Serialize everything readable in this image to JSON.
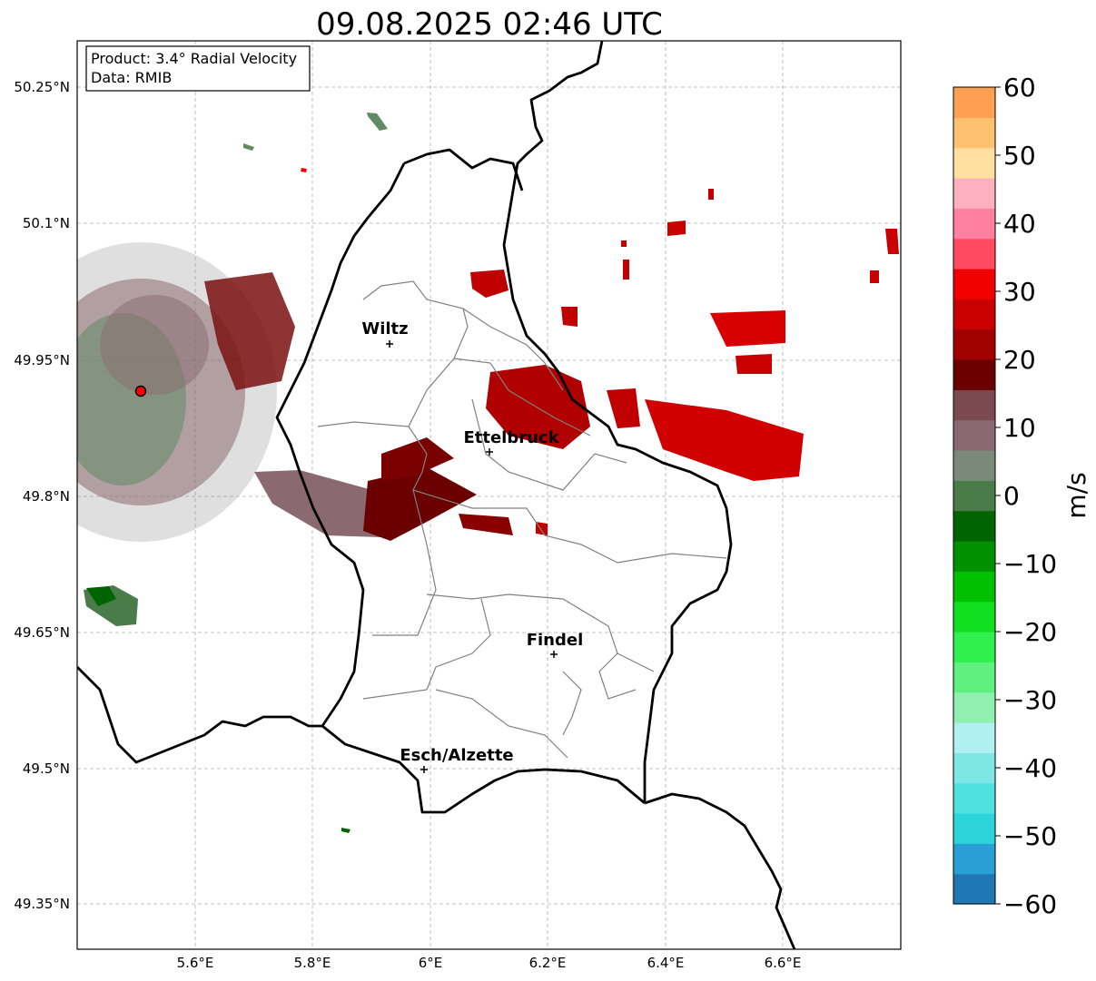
{
  "title": "09.08.2025 02:46 UTC",
  "info_box": {
    "line1": "Product: 3.4° Radial Velocity",
    "line2": "Data: RMIB"
  },
  "map": {
    "lon_ticks": [
      "5.6°E",
      "5.8°E",
      "6°E",
      "6.2°E",
      "6.4°E",
      "6.6°E"
    ],
    "lat_ticks": [
      "50.25°N",
      "50.1°N",
      "49.95°N",
      "49.8°N",
      "49.65°N",
      "49.5°N",
      "49.35°N"
    ],
    "grid": true,
    "cities": [
      {
        "name": "Wiltz",
        "lon": 5.93,
        "lat": 49.965
      },
      {
        "name": "Ettelbruck",
        "lon": 6.1,
        "lat": 49.847
      },
      {
        "name": "Findel",
        "lon": 6.21,
        "lat": 49.625
      },
      {
        "name": "Esch/Alzette",
        "lon": 5.99,
        "lat": 49.5
      }
    ],
    "radar_site": {
      "lon": 5.505,
      "lat": 49.915
    }
  },
  "colorbar": {
    "label": "m/s",
    "ticks": [
      "60",
      "50",
      "40",
      "30",
      "20",
      "10",
      "0",
      "−10",
      "−20",
      "−30",
      "−40",
      "−50",
      "−60"
    ],
    "range": [
      -60,
      60
    ],
    "colors": [
      "#1f77b4",
      "#2a9fd6",
      "#2bd4d9",
      "#4fe0e0",
      "#7fe6e6",
      "#b0f0f0",
      "#90f0b0",
      "#60f080",
      "#30f050",
      "#10e020",
      "#00c000",
      "#009000",
      "#006400",
      "#4a7c4a",
      "#7a8a7a",
      "#8a6a70",
      "#7a4a50",
      "#6b0000",
      "#a00000",
      "#c80000",
      "#f00000",
      "#ff4a60",
      "#ff80a0",
      "#ffb0c0",
      "#ffe0a0",
      "#ffc070",
      "#ffa050"
    ]
  }
}
